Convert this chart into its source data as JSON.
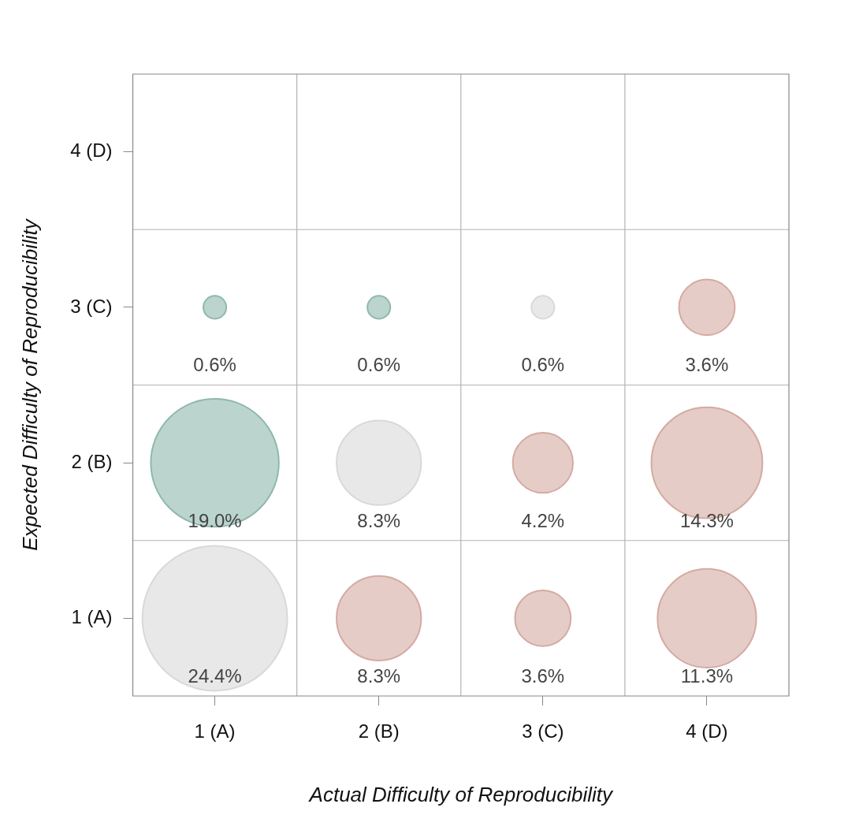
{
  "chart_data": {
    "type": "bubble",
    "xlabel": "Actual Difficulty of Reproducibility",
    "ylabel": "Expected Difficulty of Reproducibility",
    "categories": [
      "1 (A)",
      "2 (B)",
      "3 (C)",
      "4 (D)"
    ],
    "ylim": [
      0.5,
      4.5
    ],
    "yticks": [
      {
        "value": 1,
        "label": "1 (A)"
      },
      {
        "value": 2,
        "label": "2 (B)"
      },
      {
        "value": 3,
        "label": "3 (C)"
      },
      {
        "value": 4,
        "label": "4 (D)"
      }
    ],
    "grid": true,
    "series": [
      {
        "color": "#8fb8ad",
        "x": [
          "1 (A)",
          "2 (B)",
          "1 (A)"
        ],
        "values": [
          3,
          3,
          2
        ],
        "sizes": [
          0.025,
          0.025,
          0.779
        ]
      },
      {
        "color": "#d9d9d9",
        "x": [
          "3 (C)",
          "2 (B)",
          "1 (A)"
        ],
        "values": [
          3,
          2,
          1
        ],
        "sizes": [
          0.025,
          0.34,
          1
        ]
      },
      {
        "color": "#d4aaa2",
        "x": [
          "4 (D)",
          "3 (C)",
          "4 (D)",
          "2 (B)",
          "3 (C)",
          "4 (D)"
        ],
        "values": [
          3,
          2,
          2,
          1,
          1,
          1
        ],
        "sizes": [
          0.148,
          0.172,
          0.586,
          0.34,
          0.148,
          0.463
        ]
      }
    ],
    "annotations": [
      {
        "text": "0.6%",
        "x": "1 (A)",
        "y": 3
      },
      {
        "text": "0.6%",
        "x": "2 (B)",
        "y": 3
      },
      {
        "text": "0.6%",
        "x": "3 (C)",
        "y": 3
      },
      {
        "text": "3.6%",
        "x": "4 (D)",
        "y": 3
      },
      {
        "text": "19.0%",
        "x": "1 (A)",
        "y": 2
      },
      {
        "text": "8.3%",
        "x": "2 (B)",
        "y": 2
      },
      {
        "text": "4.2%",
        "x": "3 (C)",
        "y": 2
      },
      {
        "text": "14.3%",
        "x": "4 (D)",
        "y": 2
      },
      {
        "text": "24.4%",
        "x": "1 (A)",
        "y": 1
      },
      {
        "text": "8.3%",
        "x": "2 (B)",
        "y": 1
      },
      {
        "text": "3.6%",
        "x": "3 (C)",
        "y": 1
      },
      {
        "text": "11.3%",
        "x": "4 (D)",
        "y": 1
      }
    ]
  }
}
